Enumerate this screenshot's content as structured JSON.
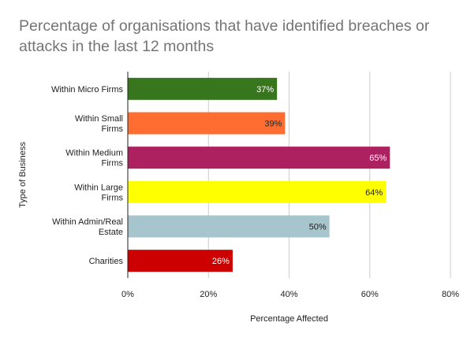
{
  "chart_data": {
    "type": "bar",
    "orientation": "horizontal",
    "title": "Percentage of organisations that have identified breaches or attacks in the last 12 months",
    "xlabel": "Percentage Affected",
    "ylabel": "Type of Business",
    "xlim": [
      0,
      80
    ],
    "xticks": [
      "0%",
      "20%",
      "40%",
      "60%",
      "80%"
    ],
    "grid": "vertical",
    "categories": [
      [
        "Within Micro Firms"
      ],
      [
        "Within Small",
        "Firms"
      ],
      [
        "Within Medium",
        "Firms"
      ],
      [
        "Within Large",
        "Firms"
      ],
      [
        "Within Admin/Real",
        "Estate"
      ],
      [
        "Charities"
      ]
    ],
    "values": [
      37,
      39,
      65,
      64,
      50,
      26
    ],
    "data_labels": [
      "37%",
      "39%",
      "65%",
      "64%",
      "50%",
      "26%"
    ],
    "colors": [
      "#38761d",
      "#ff6d31",
      "#ad2160",
      "#ffff00",
      "#a6c5cc",
      "#cc0000"
    ],
    "label_colors": [
      "#ffffff",
      "#222222",
      "#ffffff",
      "#222222",
      "#222222",
      "#ffffff"
    ]
  }
}
